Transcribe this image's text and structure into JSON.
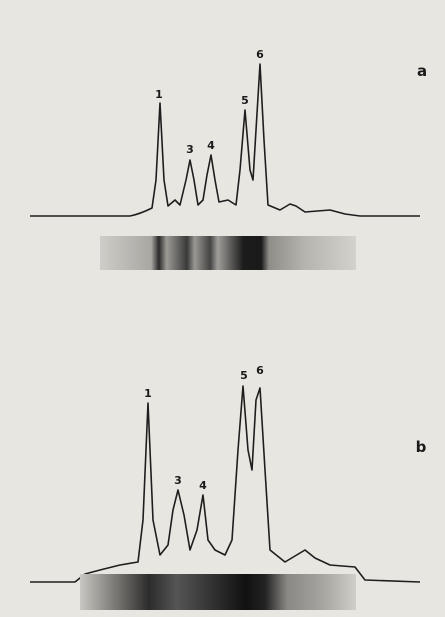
{
  "panels": [
    {
      "label": "a",
      "peaks": [
        "1",
        "3",
        "4",
        "5",
        "6"
      ]
    },
    {
      "label": "b",
      "peaks": [
        "1",
        "3",
        "4",
        "5",
        "6"
      ]
    }
  ]
}
